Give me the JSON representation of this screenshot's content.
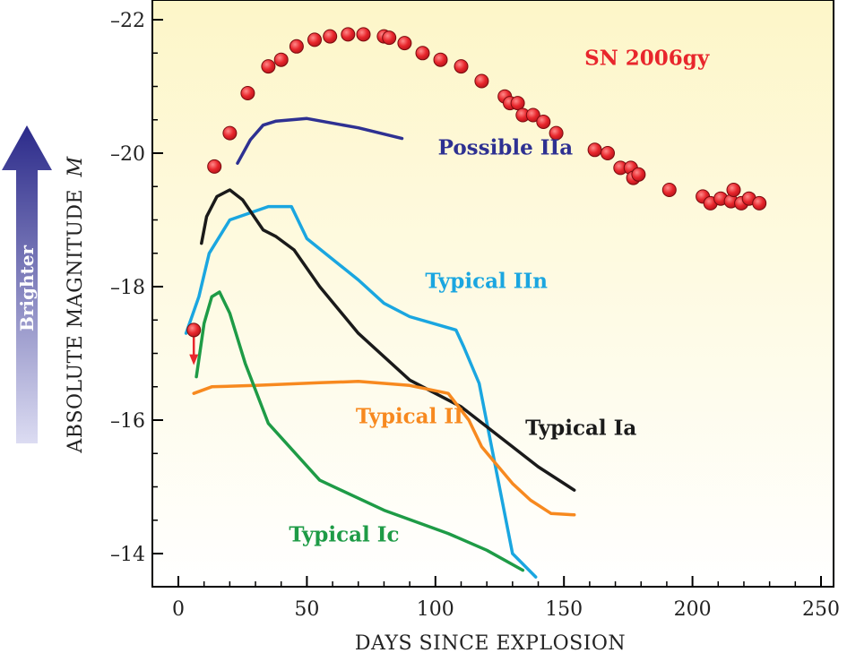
{
  "chart_data": {
    "type": "line",
    "xlabel": "DAYS SINCE EXPLOSION",
    "ylabel": "ABSOLUTE MAGNITUDE",
    "ylabel_symbol": "M",
    "arrow_label": "Brighter",
    "xlim": [
      -10,
      250
    ],
    "ylim": [
      -13.5,
      -22.2
    ],
    "xticks": [
      0,
      50,
      100,
      150,
      200,
      250
    ],
    "yticks": [
      -22,
      -20,
      -18,
      -16,
      -14
    ],
    "xtick_labels": [
      "0",
      "50",
      "100",
      "150",
      "200",
      "250"
    ],
    "ytick_labels": [
      "–22",
      "–20",
      "–18",
      "–16",
      "–14"
    ],
    "grid": false,
    "colors": {
      "background_top": "#fdf6c8",
      "background_bottom": "#ffffff",
      "arrow_dark": "#2b2a8a",
      "arrow_light": "#dcdcf2"
    },
    "scatter": {
      "name": "SN 2006gy",
      "color": "#e8262c",
      "label_color": "#e8262c",
      "upper_limit": {
        "x": 6,
        "y": -17.35,
        "arrow_to": -16.85
      },
      "points": [
        [
          14,
          -19.8
        ],
        [
          20,
          -20.3
        ],
        [
          27,
          -20.9
        ],
        [
          35,
          -21.3
        ],
        [
          40,
          -21.4
        ],
        [
          46,
          -21.6
        ],
        [
          53,
          -21.7
        ],
        [
          59,
          -21.75
        ],
        [
          66,
          -21.78
        ],
        [
          72,
          -21.78
        ],
        [
          80,
          -21.75
        ],
        [
          82,
          -21.73
        ],
        [
          88,
          -21.65
        ],
        [
          95,
          -21.5
        ],
        [
          102,
          -21.4
        ],
        [
          110,
          -21.3
        ],
        [
          118,
          -21.08
        ],
        [
          127,
          -20.85
        ],
        [
          129,
          -20.75
        ],
        [
          132,
          -20.75
        ],
        [
          134,
          -20.57
        ],
        [
          138,
          -20.57
        ],
        [
          142,
          -20.47
        ],
        [
          147,
          -20.3
        ],
        [
          162,
          -20.05
        ],
        [
          167,
          -20.0
        ],
        [
          172,
          -19.78
        ],
        [
          176,
          -19.78
        ],
        [
          177,
          -19.63
        ],
        [
          179,
          -19.68
        ],
        [
          191,
          -19.45
        ],
        [
          204,
          -19.35
        ],
        [
          207,
          -19.25
        ],
        [
          211,
          -19.32
        ],
        [
          215,
          -19.28
        ],
        [
          216,
          -19.45
        ],
        [
          219,
          -19.25
        ],
        [
          222,
          -19.32
        ],
        [
          226,
          -19.25
        ]
      ]
    },
    "series": [
      {
        "name": "Possible IIa",
        "color": "#2e3192",
        "points": [
          [
            23,
            -19.85
          ],
          [
            28,
            -20.2
          ],
          [
            33,
            -20.42
          ],
          [
            38,
            -20.48
          ],
          [
            50,
            -20.52
          ],
          [
            70,
            -20.38
          ],
          [
            87,
            -20.22
          ]
        ]
      },
      {
        "name": "Typical IIn",
        "color": "#1aa6e0",
        "points": [
          [
            3,
            -17.3
          ],
          [
            8,
            -17.85
          ],
          [
            12,
            -18.5
          ],
          [
            20,
            -19.0
          ],
          [
            35,
            -19.2
          ],
          [
            44,
            -19.2
          ],
          [
            50,
            -18.72
          ],
          [
            70,
            -18.1
          ],
          [
            80,
            -17.75
          ],
          [
            90,
            -17.55
          ],
          [
            108,
            -17.35
          ],
          [
            111,
            -17.1
          ],
          [
            117,
            -16.55
          ],
          [
            130,
            -14.0
          ],
          [
            139,
            -13.65
          ]
        ]
      },
      {
        "name": "Typical Ia",
        "color": "#1a1a1a",
        "points": [
          [
            9,
            -18.65
          ],
          [
            11,
            -19.05
          ],
          [
            15,
            -19.35
          ],
          [
            20,
            -19.45
          ],
          [
            25,
            -19.3
          ],
          [
            33,
            -18.85
          ],
          [
            38,
            -18.75
          ],
          [
            45,
            -18.55
          ],
          [
            55,
            -18.0
          ],
          [
            70,
            -17.3
          ],
          [
            90,
            -16.6
          ],
          [
            110,
            -16.2
          ],
          [
            130,
            -15.6
          ],
          [
            140,
            -15.3
          ],
          [
            154,
            -14.95
          ]
        ]
      },
      {
        "name": "Typical II",
        "color": "#f7891f",
        "points": [
          [
            6,
            -16.4
          ],
          [
            13,
            -16.5
          ],
          [
            30,
            -16.52
          ],
          [
            55,
            -16.56
          ],
          [
            70,
            -16.58
          ],
          [
            90,
            -16.52
          ],
          [
            105,
            -16.4
          ],
          [
            113,
            -16.0
          ],
          [
            118,
            -15.6
          ],
          [
            130,
            -15.05
          ],
          [
            137,
            -14.8
          ],
          [
            145,
            -14.6
          ],
          [
            154,
            -14.58
          ]
        ]
      },
      {
        "name": "Typical Ic",
        "color": "#1e9b46",
        "points": [
          [
            7,
            -16.65
          ],
          [
            10,
            -17.45
          ],
          [
            13,
            -17.85
          ],
          [
            16,
            -17.92
          ],
          [
            20,
            -17.6
          ],
          [
            26,
            -16.85
          ],
          [
            35,
            -15.95
          ],
          [
            55,
            -15.1
          ],
          [
            80,
            -14.65
          ],
          [
            105,
            -14.3
          ],
          [
            120,
            -14.05
          ],
          [
            134,
            -13.75
          ]
        ]
      }
    ],
    "labels": [
      {
        "text": "SN 2006gy",
        "x": 158,
        "y": -21.32,
        "color": "#e8262c"
      },
      {
        "text": "Possible IIa",
        "x": 101,
        "y": -19.98,
        "color": "#2e3192"
      },
      {
        "text": "Typical IIn",
        "x": 96,
        "y": -17.98,
        "color": "#1aa6e0"
      },
      {
        "text": "Typical II",
        "x": 69,
        "y": -15.95,
        "color": "#f7891f"
      },
      {
        "text": "Typical Ia",
        "x": 135,
        "y": -15.78,
        "color": "#1a1a1a"
      },
      {
        "text": "Typical Ic",
        "x": 43,
        "y": -14.18,
        "color": "#1e9b46"
      }
    ]
  }
}
